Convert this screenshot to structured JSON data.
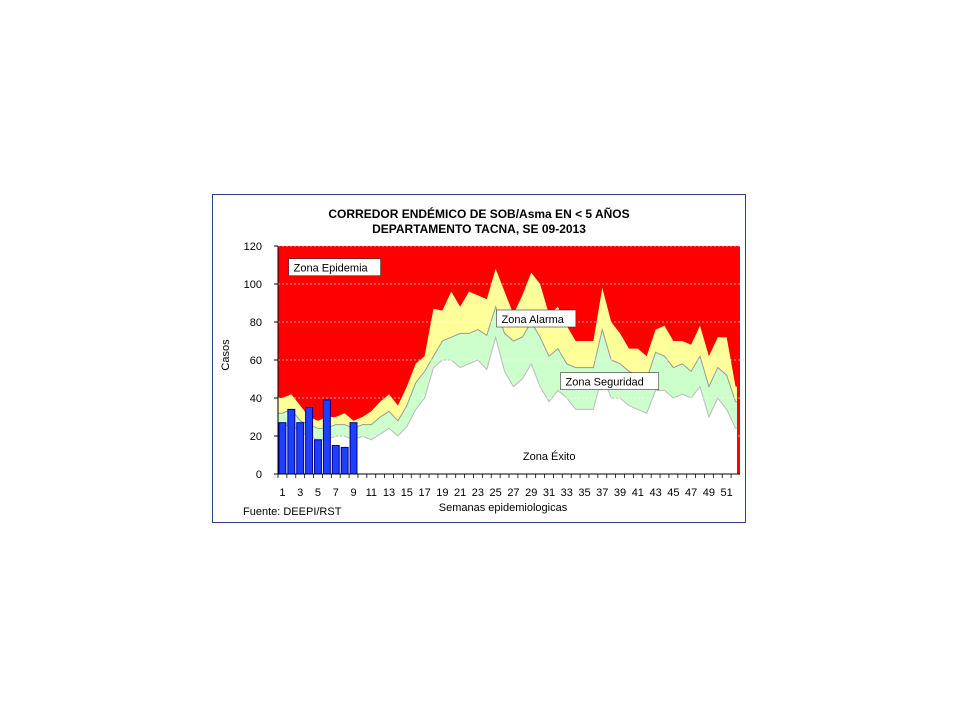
{
  "chart_data": {
    "type": "area",
    "title_line1": "CORREDOR ENDÉMICO DE SOB/Asma EN < 5 AÑOS",
    "title_line2": "DEPARTAMENTO TACNA,  SE  09-2013",
    "ylabel": "Casos",
    "xlabel": "Semanas epidemiologicas",
    "source": "Fuente: DEEPI/RST",
    "ylim": [
      0,
      120
    ],
    "yticks": [
      0,
      20,
      40,
      60,
      80,
      100,
      120
    ],
    "x_tick_labels": [
      "1",
      "3",
      "5",
      "7",
      "9",
      "11",
      "13",
      "15",
      "17",
      "19",
      "21",
      "23",
      "25",
      "27",
      "29",
      "31",
      "33",
      "35",
      "37",
      "39",
      "41",
      "43",
      "45",
      "47",
      "49",
      "51"
    ],
    "weeks": [
      1,
      2,
      3,
      4,
      5,
      6,
      7,
      8,
      9,
      10,
      11,
      12,
      13,
      14,
      15,
      16,
      17,
      18,
      19,
      20,
      21,
      22,
      23,
      24,
      25,
      26,
      27,
      28,
      29,
      30,
      31,
      32,
      33,
      34,
      35,
      36,
      37,
      38,
      39,
      40,
      41,
      42,
      43,
      44,
      45,
      46,
      47,
      48,
      49,
      50,
      51,
      52
    ],
    "grid": true,
    "zone_labels": {
      "epidemia": "Zona Epidemia",
      "alarma": "Zona Alarma",
      "seguridad": "Zona Seguridad",
      "exito": "Zona Éxito"
    },
    "colors": {
      "epidemia": "#ff0000",
      "alarma": "#ffff99",
      "seguridad": "#ccffcc",
      "exito": "#ffffff",
      "bars": "#1f3fff",
      "bar_edge": "#00008b",
      "zone_line": "#999999"
    },
    "upper_alarma": [
      40,
      42,
      36,
      30,
      28,
      30,
      30,
      32,
      28,
      30,
      33,
      38,
      42,
      36,
      46,
      58,
      62,
      87,
      86,
      96,
      88,
      96,
      94,
      92,
      108,
      96,
      84,
      94,
      106,
      100,
      84,
      88,
      78,
      70,
      70,
      70,
      98,
      80,
      74,
      66,
      66,
      62,
      76,
      78,
      70,
      70,
      68,
      78,
      62,
      72,
      72,
      46
    ],
    "upper_seguridad": [
      32,
      34,
      28,
      26,
      24,
      24,
      26,
      26,
      24,
      26,
      26,
      30,
      33,
      28,
      36,
      48,
      54,
      62,
      70,
      72,
      74,
      74,
      76,
      73,
      88,
      74,
      70,
      72,
      80,
      72,
      62,
      66,
      58,
      56,
      56,
      56,
      76,
      60,
      58,
      54,
      52,
      50,
      64,
      62,
      56,
      58,
      54,
      62,
      46,
      56,
      52,
      38
    ],
    "upper_exito": [
      25,
      26,
      22,
      20,
      18,
      18,
      20,
      20,
      18,
      20,
      18,
      21,
      24,
      20,
      25,
      34,
      40,
      56,
      60,
      60,
      56,
      58,
      60,
      55,
      72,
      54,
      46,
      50,
      58,
      46,
      38,
      44,
      40,
      34,
      34,
      34,
      52,
      40,
      40,
      36,
      34,
      32,
      44,
      44,
      40,
      42,
      40,
      46,
      30,
      40,
      34,
      24
    ],
    "bars": [
      27,
      34,
      27,
      35,
      18,
      39,
      15,
      14,
      27
    ]
  }
}
